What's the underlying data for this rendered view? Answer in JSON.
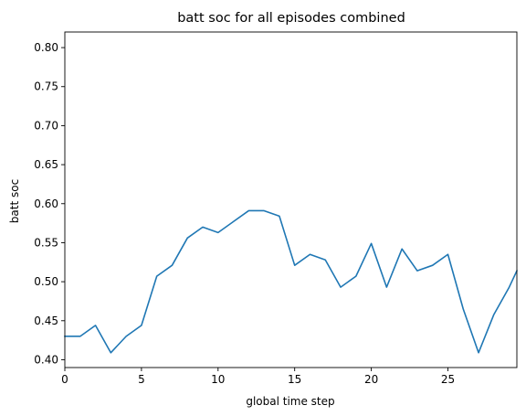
{
  "chart_data": {
    "type": "line",
    "title": "batt soc for all episodes combined",
    "xlabel": "global time step",
    "ylabel": "batt soc",
    "xlim": [
      0,
      29.5
    ],
    "ylim": [
      0.39,
      0.82
    ],
    "xticks": [
      0,
      5,
      10,
      15,
      20,
      25
    ],
    "xtick_labels": [
      "0",
      "5",
      "10",
      "15",
      "20",
      "25"
    ],
    "yticks": [
      0.4,
      0.45,
      0.5,
      0.55,
      0.6,
      0.65,
      0.7,
      0.75,
      0.8
    ],
    "ytick_labels": [
      "0.40",
      "0.45",
      "0.50",
      "0.55",
      "0.60",
      "0.65",
      "0.70",
      "0.75",
      "0.80"
    ],
    "grid": false,
    "series": [
      {
        "color": "#1f77b4",
        "x": [
          0,
          1,
          2,
          3,
          4,
          5,
          6,
          7,
          8,
          9,
          10,
          11,
          12,
          13,
          14,
          15,
          16,
          17,
          18,
          19,
          20,
          21,
          22,
          23,
          24,
          25,
          26,
          27,
          28,
          29,
          29.5
        ],
        "y": [
          0.43,
          0.43,
          0.444,
          0.409,
          0.43,
          0.444,
          0.507,
          0.521,
          0.556,
          0.57,
          0.563,
          0.577,
          0.591,
          0.591,
          0.584,
          0.521,
          0.535,
          0.528,
          0.493,
          0.507,
          0.549,
          0.493,
          0.542,
          0.514,
          0.521,
          0.535,
          0.465,
          0.409,
          0.458,
          0.493,
          0.514
        ]
      }
    ]
  }
}
